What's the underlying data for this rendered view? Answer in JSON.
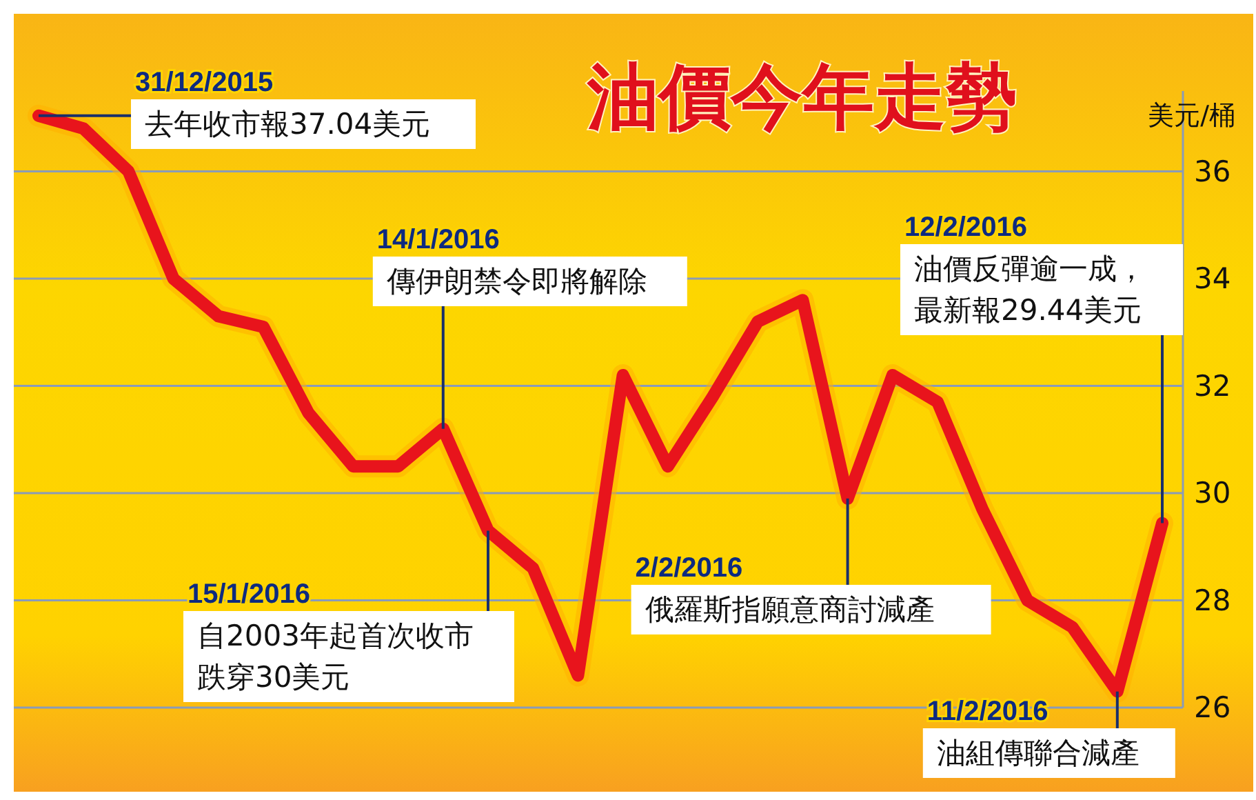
{
  "chart_data": {
    "type": "line",
    "title": "油價今年走勢",
    "ylabel": "美元/桶",
    "categories": [
      null,
      null,
      null,
      null,
      null,
      null,
      null,
      null,
      null,
      null,
      null,
      null,
      null,
      null,
      null,
      null,
      null,
      null,
      null,
      null,
      null,
      null,
      null,
      null,
      null,
      null
    ],
    "series": [
      {
        "color": "#e8141c",
        "values": [
          37.04,
          36.8,
          36.0,
          34.0,
          33.3,
          33.1,
          31.5,
          30.5,
          30.5,
          31.2,
          29.3,
          28.6,
          26.6,
          32.2,
          30.5,
          31.8,
          33.2,
          33.6,
          29.9,
          32.2,
          31.7,
          29.7,
          28.0,
          27.5,
          26.3,
          29.44
        ]
      }
    ],
    "ylim": [
      26,
      37.5
    ],
    "yticks": [
      26,
      28,
      30,
      32,
      34,
      36
    ],
    "grid": "y",
    "tick_labels": "y",
    "marker": "none",
    "line_style": "solid",
    "annotations": [
      "31/12/2015\n去年收市報37.04美元",
      "14/1/2016\n傳伊朗禁令即將解除",
      "15/1/2016\n自2003年起首次收市跌穿30美元",
      "2/2/2016\n俄羅斯指願意商討減產",
      "11/2/2016\n油組傳聯合減產",
      "12/2/2016\n油價反彈逾一成，最新報29.44美元"
    ]
  }
}
